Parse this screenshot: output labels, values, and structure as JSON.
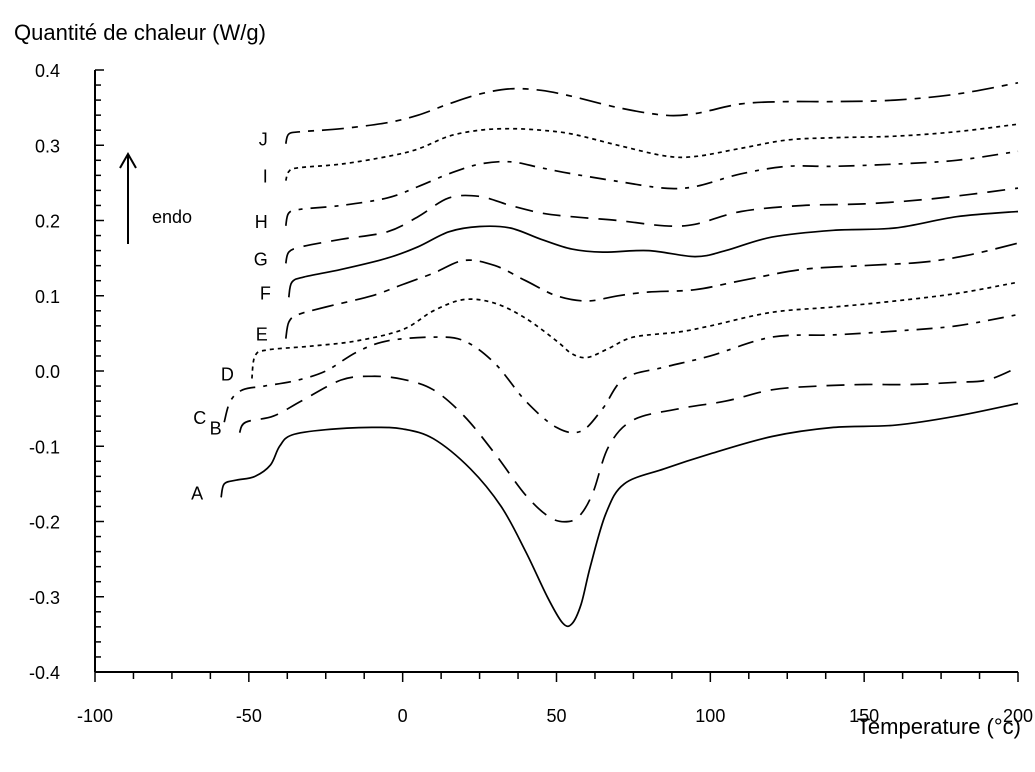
{
  "chart_data": {
    "type": "line",
    "title": "",
    "ylabel": "Quantité de chaleur (W/g)",
    "xlabel": "Temperature (°c)",
    "xlim": [
      -100,
      200
    ],
    "ylim": [
      -0.4,
      0.4
    ],
    "x_ticks": [
      "-100",
      "-50",
      "0",
      "50",
      "100",
      "150",
      "200"
    ],
    "y_ticks": [
      "0.4",
      "0.3",
      "0.2",
      "0.1",
      "0.0",
      "-0.1",
      "-0.2",
      "-0.3",
      "-0.4"
    ],
    "annotation": {
      "text": "endo",
      "arrow": "up"
    },
    "grid": false,
    "series": [
      {
        "name": "A",
        "dash": "solid",
        "points": [
          [
            -59,
            -0.168
          ],
          [
            -58,
            -0.15
          ],
          [
            -54,
            -0.145
          ],
          [
            -48,
            -0.14
          ],
          [
            -43,
            -0.125
          ],
          [
            -40,
            -0.1
          ],
          [
            -36,
            -0.085
          ],
          [
            -25,
            -0.078
          ],
          [
            -10,
            -0.075
          ],
          [
            0,
            -0.077
          ],
          [
            10,
            -0.09
          ],
          [
            22,
            -0.13
          ],
          [
            32,
            -0.18
          ],
          [
            40,
            -0.24
          ],
          [
            47,
            -0.3
          ],
          [
            52,
            -0.335
          ],
          [
            55,
            -0.336
          ],
          [
            58,
            -0.31
          ],
          [
            61,
            -0.26
          ],
          [
            66,
            -0.19
          ],
          [
            72,
            -0.15
          ],
          [
            85,
            -0.13
          ],
          [
            100,
            -0.11
          ],
          [
            120,
            -0.087
          ],
          [
            140,
            -0.075
          ],
          [
            160,
            -0.072
          ],
          [
            180,
            -0.06
          ],
          [
            200,
            -0.043
          ]
        ]
      },
      {
        "name": "B",
        "dash": "dashed",
        "points": [
          [
            -53,
            -0.082
          ],
          [
            -51,
            -0.068
          ],
          [
            -42,
            -0.06
          ],
          [
            -33,
            -0.04
          ],
          [
            -20,
            -0.012
          ],
          [
            -10,
            -0.007
          ],
          [
            0,
            -0.011
          ],
          [
            10,
            -0.025
          ],
          [
            20,
            -0.06
          ],
          [
            30,
            -0.11
          ],
          [
            40,
            -0.165
          ],
          [
            48,
            -0.195
          ],
          [
            54,
            -0.2
          ],
          [
            58,
            -0.19
          ],
          [
            62,
            -0.16
          ],
          [
            67,
            -0.1
          ],
          [
            75,
            -0.065
          ],
          [
            90,
            -0.05
          ],
          [
            105,
            -0.04
          ],
          [
            120,
            -0.025
          ],
          [
            135,
            -0.02
          ],
          [
            150,
            -0.018
          ],
          [
            165,
            -0.018
          ],
          [
            180,
            -0.015
          ],
          [
            190,
            -0.012
          ],
          [
            200,
            0.005
          ]
        ]
      },
      {
        "name": "C",
        "dash": "dashdot",
        "points": [
          [
            -58,
            -0.068
          ],
          [
            -56,
            -0.04
          ],
          [
            -52,
            -0.025
          ],
          [
            -45,
            -0.02
          ],
          [
            -35,
            -0.013
          ],
          [
            -25,
            0.0
          ],
          [
            -15,
            0.025
          ],
          [
            -5,
            0.04
          ],
          [
            10,
            0.045
          ],
          [
            20,
            0.04
          ],
          [
            30,
            0.01
          ],
          [
            40,
            -0.04
          ],
          [
            50,
            -0.075
          ],
          [
            58,
            -0.08
          ],
          [
            65,
            -0.05
          ],
          [
            72,
            -0.01
          ],
          [
            85,
            0.005
          ],
          [
            100,
            0.02
          ],
          [
            120,
            0.045
          ],
          [
            140,
            0.048
          ],
          [
            160,
            0.053
          ],
          [
            180,
            0.06
          ],
          [
            200,
            0.075
          ]
        ]
      },
      {
        "name": "D",
        "dash": "dotted",
        "points": [
          [
            -49,
            -0.01
          ],
          [
            -48,
            0.02
          ],
          [
            -44,
            0.028
          ],
          [
            -30,
            0.033
          ],
          [
            -15,
            0.04
          ],
          [
            0,
            0.055
          ],
          [
            10,
            0.08
          ],
          [
            20,
            0.095
          ],
          [
            30,
            0.09
          ],
          [
            40,
            0.07
          ],
          [
            50,
            0.04
          ],
          [
            55,
            0.023
          ],
          [
            60,
            0.018
          ],
          [
            67,
            0.03
          ],
          [
            75,
            0.045
          ],
          [
            90,
            0.052
          ],
          [
            100,
            0.06
          ],
          [
            120,
            0.078
          ],
          [
            140,
            0.085
          ],
          [
            160,
            0.093
          ],
          [
            180,
            0.103
          ],
          [
            200,
            0.118
          ]
        ]
      },
      {
        "name": "E",
        "dash": "dashdotlong",
        "points": [
          [
            -38,
            0.043
          ],
          [
            -37,
            0.065
          ],
          [
            -34,
            0.075
          ],
          [
            -25,
            0.085
          ],
          [
            -10,
            0.1
          ],
          [
            0,
            0.115
          ],
          [
            10,
            0.13
          ],
          [
            20,
            0.147
          ],
          [
            30,
            0.14
          ],
          [
            40,
            0.12
          ],
          [
            50,
            0.1
          ],
          [
            60,
            0.093
          ],
          [
            70,
            0.1
          ],
          [
            80,
            0.105
          ],
          [
            95,
            0.108
          ],
          [
            110,
            0.12
          ],
          [
            130,
            0.135
          ],
          [
            150,
            0.14
          ],
          [
            170,
            0.145
          ],
          [
            185,
            0.155
          ],
          [
            200,
            0.17
          ]
        ]
      },
      {
        "name": "F",
        "dash": "solid",
        "points": [
          [
            -37,
            0.098
          ],
          [
            -36,
            0.118
          ],
          [
            -32,
            0.125
          ],
          [
            -20,
            0.135
          ],
          [
            -5,
            0.15
          ],
          [
            5,
            0.165
          ],
          [
            15,
            0.185
          ],
          [
            25,
            0.192
          ],
          [
            35,
            0.19
          ],
          [
            45,
            0.175
          ],
          [
            55,
            0.162
          ],
          [
            65,
            0.158
          ],
          [
            80,
            0.16
          ],
          [
            95,
            0.152
          ],
          [
            105,
            0.16
          ],
          [
            120,
            0.178
          ],
          [
            140,
            0.187
          ],
          [
            160,
            0.19
          ],
          [
            180,
            0.205
          ],
          [
            200,
            0.212
          ]
        ]
      },
      {
        "name": "G",
        "dash": "dashed",
        "points": [
          [
            -38,
            0.143
          ],
          [
            -37,
            0.158
          ],
          [
            -33,
            0.165
          ],
          [
            -20,
            0.175
          ],
          [
            -5,
            0.185
          ],
          [
            5,
            0.205
          ],
          [
            15,
            0.23
          ],
          [
            25,
            0.232
          ],
          [
            35,
            0.22
          ],
          [
            45,
            0.21
          ],
          [
            55,
            0.205
          ],
          [
            70,
            0.2
          ],
          [
            85,
            0.193
          ],
          [
            95,
            0.195
          ],
          [
            110,
            0.212
          ],
          [
            130,
            0.22
          ],
          [
            150,
            0.222
          ],
          [
            170,
            0.228
          ],
          [
            185,
            0.235
          ],
          [
            200,
            0.243
          ]
        ]
      },
      {
        "name": "H",
        "dash": "dashdot",
        "points": [
          [
            -38,
            0.193
          ],
          [
            -37,
            0.21
          ],
          [
            -33,
            0.215
          ],
          [
            -20,
            0.22
          ],
          [
            -5,
            0.23
          ],
          [
            5,
            0.245
          ],
          [
            15,
            0.262
          ],
          [
            25,
            0.275
          ],
          [
            35,
            0.278
          ],
          [
            45,
            0.27
          ],
          [
            55,
            0.262
          ],
          [
            70,
            0.252
          ],
          [
            85,
            0.243
          ],
          [
            95,
            0.245
          ],
          [
            110,
            0.262
          ],
          [
            125,
            0.272
          ],
          [
            140,
            0.272
          ],
          [
            160,
            0.275
          ],
          [
            180,
            0.28
          ],
          [
            200,
            0.292
          ]
        ]
      },
      {
        "name": "I",
        "dash": "dotted",
        "points": [
          [
            -38,
            0.253
          ],
          [
            -37,
            0.265
          ],
          [
            -34,
            0.27
          ],
          [
            -20,
            0.275
          ],
          [
            -5,
            0.285
          ],
          [
            5,
            0.295
          ],
          [
            15,
            0.312
          ],
          [
            25,
            0.32
          ],
          [
            35,
            0.322
          ],
          [
            45,
            0.32
          ],
          [
            55,
            0.315
          ],
          [
            70,
            0.3
          ],
          [
            85,
            0.286
          ],
          [
            95,
            0.285
          ],
          [
            110,
            0.296
          ],
          [
            125,
            0.307
          ],
          [
            140,
            0.31
          ],
          [
            160,
            0.312
          ],
          [
            180,
            0.318
          ],
          [
            200,
            0.328
          ]
        ]
      },
      {
        "name": "J",
        "dash": "dashdotlong",
        "points": [
          [
            -38,
            0.302
          ],
          [
            -37,
            0.315
          ],
          [
            -33,
            0.318
          ],
          [
            -20,
            0.322
          ],
          [
            -5,
            0.33
          ],
          [
            5,
            0.34
          ],
          [
            15,
            0.355
          ],
          [
            25,
            0.368
          ],
          [
            35,
            0.375
          ],
          [
            45,
            0.373
          ],
          [
            55,
            0.365
          ],
          [
            70,
            0.35
          ],
          [
            85,
            0.34
          ],
          [
            95,
            0.342
          ],
          [
            110,
            0.355
          ],
          [
            125,
            0.358
          ],
          [
            140,
            0.358
          ],
          [
            160,
            0.36
          ],
          [
            180,
            0.368
          ],
          [
            200,
            0.383
          ]
        ]
      }
    ]
  }
}
